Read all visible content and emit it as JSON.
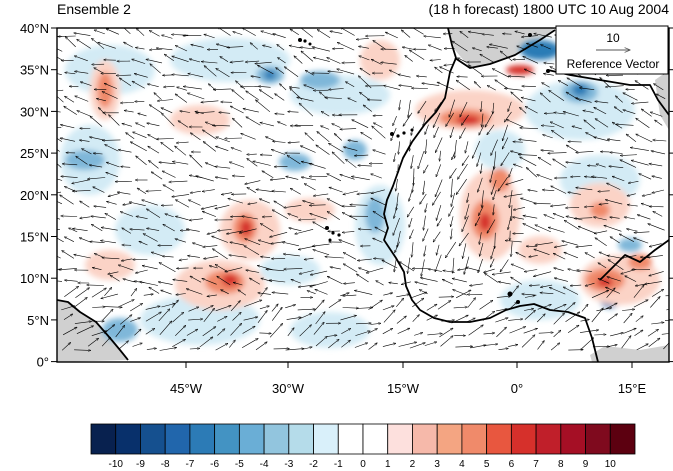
{
  "title_left": "Ensemble 2",
  "title_right": "(18 h forecast) 1800 UTC 10 Aug 2004",
  "reference_vector": {
    "magnitude": "10",
    "label": "Reference Vector"
  },
  "lat_labels": [
    "40°N",
    "35°N",
    "30°N",
    "25°N",
    "20°N",
    "15°N",
    "10°N",
    "5°N",
    "0°"
  ],
  "lon_labels": [
    "45°W",
    "30°W",
    "15°W",
    "0°",
    "15°E"
  ],
  "colorbar": {
    "labels": [
      "-10",
      "-9",
      "-8",
      "-7",
      "-6",
      "-5",
      "-4",
      "-3",
      "-2",
      "-1",
      "0",
      "1",
      "2",
      "3",
      "4",
      "5",
      "6",
      "7",
      "8",
      "9",
      "10"
    ],
    "colors": [
      "#08214f",
      "#08306b",
      "#15508f",
      "#2166ac",
      "#2c7bb6",
      "#4393c3",
      "#6aaed6",
      "#92c5de",
      "#b5dcea",
      "#d9f0fa",
      "#ffffff",
      "#ffffff",
      "#fde0dd",
      "#f6b9aa",
      "#f4a582",
      "#f08a6a",
      "#e8573f",
      "#d6302b",
      "#c01f2a",
      "#a50f25",
      "#7f0a1e",
      "#5c0010"
    ]
  },
  "colors": {
    "land": "#d0d0d0",
    "frame": "#000000"
  }
}
